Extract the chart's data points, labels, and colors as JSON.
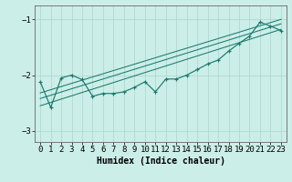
{
  "xlabel": "Humidex (Indice chaleur)",
  "bg_color": "#cceee8",
  "line_color": "#1a7a6e",
  "grid_color": "#aad4ce",
  "xlim": [
    -0.5,
    23.5
  ],
  "ylim": [
    -3.2,
    -0.75
  ],
  "yticks": [
    -3,
    -2,
    -1
  ],
  "xticks": [
    0,
    1,
    2,
    3,
    4,
    5,
    6,
    7,
    8,
    9,
    10,
    11,
    12,
    13,
    14,
    15,
    16,
    17,
    18,
    19,
    20,
    21,
    22,
    23
  ],
  "data_x": [
    0,
    1,
    2,
    3,
    4,
    5,
    6,
    7,
    8,
    9,
    10,
    11,
    12,
    13,
    14,
    15,
    16,
    17,
    18,
    19,
    20,
    21,
    22,
    23
  ],
  "data_y": [
    -2.12,
    -2.58,
    -2.05,
    -2.0,
    -2.08,
    -2.38,
    -2.33,
    -2.33,
    -2.3,
    -2.22,
    -2.12,
    -2.3,
    -2.07,
    -2.07,
    -2.0,
    -1.9,
    -1.8,
    -1.73,
    -1.57,
    -1.43,
    -1.3,
    -1.05,
    -1.12,
    -1.2
  ],
  "line1_x": [
    0,
    23
  ],
  "line1_y": [
    -2.55,
    -1.18
  ],
  "line2_x": [
    0,
    23
  ],
  "line2_y": [
    -2.42,
    -1.08
  ],
  "line3_x": [
    0,
    23
  ],
  "line3_y": [
    -2.32,
    -1.0
  ],
  "fontsize_xlabel": 7,
  "tick_fontsize": 6.5
}
